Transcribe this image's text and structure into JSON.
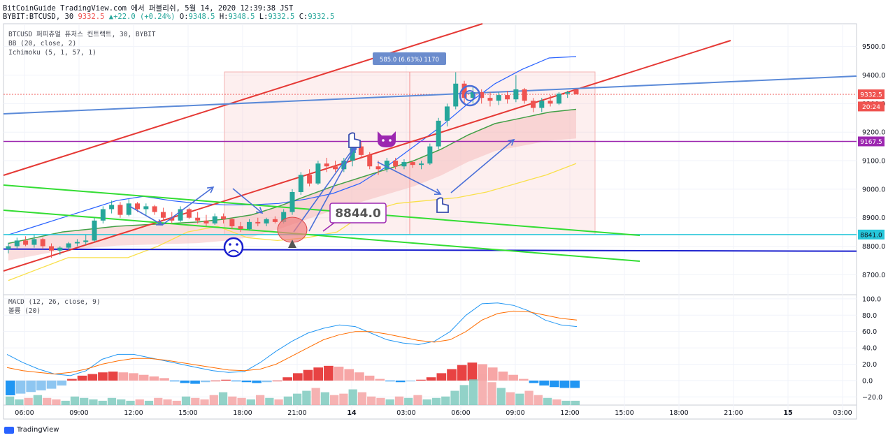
{
  "header": {
    "source_line": "BitCoinGuide TradingView.com 에서 퍼블리쉬, 5월 14, 2020 12:39:38 JST",
    "ticker": "BYBIT:BTCUSD, 30",
    "last": "9332.5",
    "change": "+22.0 (+0.24%)",
    "ohlc": [
      {
        "k": "O:",
        "v": "9348.5"
      },
      {
        "k": "H:",
        "v": "9348.5"
      },
      {
        "k": "L:",
        "v": "9332.5"
      },
      {
        "k": "C:",
        "v": "9332.5"
      }
    ]
  },
  "legend": {
    "symbol": "BTCUSD 퍼피츄얼 퓨처스 컨트랙트, 30, BYBIT",
    "bb": "BB (20, close, 2)",
    "ichimoku": "Ichimoku (5, 1, 57, 1)",
    "macd": "MACD (12, 26, close, 9)",
    "volume": "볼륨 (20)"
  },
  "footer": {
    "brand": "TradingView"
  },
  "chart_data": [
    {
      "type": "candlestick",
      "title": "BTCUSD 퍼피츄얼 퓨처스 컨트랙트, 30, BYBIT",
      "x_ticks": [
        "06:00",
        "09:00",
        "12:00",
        "15:00",
        "18:00",
        "21:00",
        "14",
        "03:00",
        "06:00",
        "09:00",
        "12:00",
        "15:00",
        "18:00",
        "21:00",
        "15",
        "03:00"
      ],
      "y_ticks": [
        8700,
        8800,
        8900,
        9000,
        9100,
        9200,
        9300,
        9400,
        9500
      ],
      "ylim": [
        8630,
        9580
      ],
      "price_labels": [
        {
          "value": 9332.5,
          "label": "9332.5",
          "color": "#ef5350"
        },
        {
          "value": 9290,
          "label": "20:24",
          "color": "#ef5350"
        },
        {
          "value": 9167.5,
          "label": "9167.5",
          "color": "#9c27b0"
        },
        {
          "value": 8841.0,
          "label": "8841.0",
          "color": "#26c6da"
        }
      ],
      "levels": [
        {
          "name": "9167.5",
          "value": 9167.5,
          "color": "#9c27b0"
        },
        {
          "name": "8841.0",
          "value": 8841.0,
          "color": "#26c6da"
        },
        {
          "name": "8790",
          "value": 8790,
          "color": "#1a1fce"
        }
      ],
      "annotations": [
        {
          "text": "585.0 (6.63%) 1170",
          "kind": "measure"
        },
        {
          "text": "8844.0",
          "kind": "callout"
        }
      ],
      "candles": [
        {
          "o": 8790,
          "h": 8812,
          "l": 8775,
          "c": 8800
        },
        {
          "o": 8800,
          "h": 8830,
          "l": 8790,
          "c": 8820
        },
        {
          "o": 8820,
          "h": 8835,
          "l": 8800,
          "c": 8805
        },
        {
          "o": 8805,
          "h": 8840,
          "l": 8795,
          "c": 8825
        },
        {
          "o": 8825,
          "h": 8830,
          "l": 8790,
          "c": 8800
        },
        {
          "o": 8800,
          "h": 8810,
          "l": 8760,
          "c": 8785
        },
        {
          "o": 8785,
          "h": 8800,
          "l": 8770,
          "c": 8795
        },
        {
          "o": 8795,
          "h": 8815,
          "l": 8785,
          "c": 8810
        },
        {
          "o": 8810,
          "h": 8825,
          "l": 8800,
          "c": 8815
        },
        {
          "o": 8815,
          "h": 8840,
          "l": 8805,
          "c": 8820
        },
        {
          "o": 8820,
          "h": 8900,
          "l": 8815,
          "c": 8890
        },
        {
          "o": 8890,
          "h": 8940,
          "l": 8880,
          "c": 8930
        },
        {
          "o": 8930,
          "h": 8960,
          "l": 8915,
          "c": 8945
        },
        {
          "o": 8945,
          "h": 8955,
          "l": 8900,
          "c": 8910
        },
        {
          "o": 8910,
          "h": 8965,
          "l": 8905,
          "c": 8950
        },
        {
          "o": 8950,
          "h": 8955,
          "l": 8920,
          "c": 8930
        },
        {
          "o": 8930,
          "h": 8950,
          "l": 8910,
          "c": 8940
        },
        {
          "o": 8940,
          "h": 8945,
          "l": 8910,
          "c": 8920
        },
        {
          "o": 8920,
          "h": 8935,
          "l": 8890,
          "c": 8900
        },
        {
          "o": 8900,
          "h": 8920,
          "l": 8880,
          "c": 8890
        },
        {
          "o": 8890,
          "h": 8940,
          "l": 8885,
          "c": 8930
        },
        {
          "o": 8930,
          "h": 8935,
          "l": 8895,
          "c": 8900
        },
        {
          "o": 8900,
          "h": 8920,
          "l": 8880,
          "c": 8890
        },
        {
          "o": 8890,
          "h": 8910,
          "l": 8870,
          "c": 8880
        },
        {
          "o": 8880,
          "h": 8915,
          "l": 8875,
          "c": 8905
        },
        {
          "o": 8905,
          "h": 8915,
          "l": 8880,
          "c": 8895
        },
        {
          "o": 8895,
          "h": 8900,
          "l": 8860,
          "c": 8870
        },
        {
          "o": 8870,
          "h": 8885,
          "l": 8850,
          "c": 8860
        },
        {
          "o": 8860,
          "h": 8895,
          "l": 8855,
          "c": 8885
        },
        {
          "o": 8885,
          "h": 8900,
          "l": 8870,
          "c": 8880
        },
        {
          "o": 8880,
          "h": 8900,
          "l": 8870,
          "c": 8895
        },
        {
          "o": 8895,
          "h": 8905,
          "l": 8880,
          "c": 8885
        },
        {
          "o": 8885,
          "h": 8930,
          "l": 8880,
          "c": 8920
        },
        {
          "o": 8920,
          "h": 9000,
          "l": 8910,
          "c": 8990
        },
        {
          "o": 8990,
          "h": 9060,
          "l": 8980,
          "c": 9050
        },
        {
          "o": 9050,
          "h": 9070,
          "l": 9010,
          "c": 9020
        },
        {
          "o": 9020,
          "h": 9100,
          "l": 9015,
          "c": 9090
        },
        {
          "o": 9090,
          "h": 9110,
          "l": 9060,
          "c": 9080
        },
        {
          "o": 9080,
          "h": 9100,
          "l": 9060,
          "c": 9070
        },
        {
          "o": 9070,
          "h": 9110,
          "l": 9060,
          "c": 9100
        },
        {
          "o": 9100,
          "h": 9160,
          "l": 9080,
          "c": 9150
        },
        {
          "o": 9150,
          "h": 9165,
          "l": 9110,
          "c": 9120
        },
        {
          "o": 9120,
          "h": 9130,
          "l": 9070,
          "c": 9080
        },
        {
          "o": 9080,
          "h": 9100,
          "l": 9050,
          "c": 9070
        },
        {
          "o": 9070,
          "h": 9110,
          "l": 9060,
          "c": 9100
        },
        {
          "o": 9100,
          "h": 9110,
          "l": 9070,
          "c": 9080
        },
        {
          "o": 9080,
          "h": 9105,
          "l": 9070,
          "c": 9095
        },
        {
          "o": 9095,
          "h": 9100,
          "l": 9075,
          "c": 9085
        },
        {
          "o": 9085,
          "h": 9100,
          "l": 9070,
          "c": 9090
        },
        {
          "o": 9090,
          "h": 9160,
          "l": 9085,
          "c": 9150
        },
        {
          "o": 9150,
          "h": 9250,
          "l": 9140,
          "c": 9240
        },
        {
          "o": 9240,
          "h": 9300,
          "l": 9220,
          "c": 9290
        },
        {
          "o": 9290,
          "h": 9410,
          "l": 9280,
          "c": 9370
        },
        {
          "o": 9370,
          "h": 9380,
          "l": 9300,
          "c": 9320
        },
        {
          "o": 9320,
          "h": 9360,
          "l": 9300,
          "c": 9340
        },
        {
          "o": 9340,
          "h": 9350,
          "l": 9300,
          "c": 9320
        },
        {
          "o": 9320,
          "h": 9340,
          "l": 9290,
          "c": 9310
        },
        {
          "o": 9310,
          "h": 9340,
          "l": 9295,
          "c": 9330
        },
        {
          "o": 9330,
          "h": 9345,
          "l": 9300,
          "c": 9315
        },
        {
          "o": 9315,
          "h": 9400,
          "l": 9305,
          "c": 9350
        },
        {
          "o": 9350,
          "h": 9355,
          "l": 9300,
          "c": 9310
        },
        {
          "o": 9310,
          "h": 9320,
          "l": 9270,
          "c": 9285
        },
        {
          "o": 9285,
          "h": 9320,
          "l": 9270,
          "c": 9310
        },
        {
          "o": 9310,
          "h": 9330,
          "l": 9290,
          "c": 9300
        },
        {
          "o": 9300,
          "h": 9340,
          "l": 9295,
          "c": 9335
        },
        {
          "o": 9335,
          "h": 9345,
          "l": 9320,
          "c": 9340
        },
        {
          "o": 9348.5,
          "h": 9348.5,
          "l": 9332.5,
          "c": 9332.5
        }
      ],
      "bb_upper": [
        8840,
        8870,
        8900,
        8930,
        8960,
        8975,
        8960,
        8950,
        8945,
        8945,
        8950,
        8965,
        8985,
        9020,
        9080,
        9150,
        9220,
        9300,
        9370,
        9420,
        9460,
        9465
      ],
      "bb_basis": [
        8810,
        8830,
        8850,
        8860,
        8870,
        8875,
        8880,
        8885,
        8895,
        8910,
        8940,
        8975,
        9010,
        9040,
        9070,
        9100,
        9140,
        9190,
        9230,
        9250,
        9270,
        9280
      ],
      "ichimoku_lagging": [
        8680,
        8720,
        8760,
        8760,
        8760,
        8800,
        8850,
        8870,
        8830,
        8820,
        8830,
        8850,
        8920,
        8950,
        8960,
        8970,
        8990,
        9020,
        9050,
        9090
      ]
    },
    {
      "type": "bar",
      "title": "MACD (12, 26, close, 9)",
      "y_ticks": [
        -20,
        0,
        20,
        40,
        60,
        80,
        100
      ],
      "ylim": [
        -30,
        105
      ],
      "histogram": [
        -18,
        -16,
        -14,
        -12,
        -10,
        -6,
        2,
        6,
        8,
        10,
        11,
        10,
        9,
        7,
        5,
        3,
        -1,
        -3,
        -4,
        -2,
        0,
        1,
        -1,
        -2,
        -3,
        -2,
        0,
        4,
        9,
        13,
        16,
        18,
        17,
        14,
        10,
        6,
        2,
        -1,
        -2,
        -1,
        1,
        4,
        9,
        14,
        19,
        22,
        20,
        16,
        11,
        7,
        2,
        -3,
        -6,
        -8,
        -9,
        -9
      ],
      "macd_line": [
        32,
        22,
        14,
        8,
        6,
        12,
        26,
        32,
        32,
        28,
        24,
        20,
        16,
        12,
        10,
        11,
        22,
        36,
        48,
        58,
        64,
        68,
        66,
        58,
        50,
        46,
        44,
        48,
        60,
        80,
        94,
        95,
        92,
        85,
        74,
        68,
        66
      ],
      "signal_line": [
        16,
        12,
        10,
        8,
        10,
        14,
        20,
        24,
        27,
        27,
        25,
        22,
        19,
        16,
        13,
        12,
        14,
        20,
        30,
        40,
        50,
        56,
        60,
        60,
        57,
        53,
        49,
        47,
        50,
        60,
        74,
        82,
        85,
        84,
        80,
        76,
        74
      ]
    },
    {
      "type": "bar",
      "title": "볼륨 (20)",
      "values": [
        6,
        4,
        5,
        7,
        5,
        4,
        3,
        6,
        5,
        4,
        3,
        5,
        4,
        3,
        4,
        3,
        5,
        4,
        3,
        6,
        5,
        4,
        7,
        9,
        6,
        5,
        4,
        7,
        5,
        4,
        6,
        8,
        10,
        12,
        9,
        7,
        8,
        11,
        9,
        6,
        5,
        4,
        6,
        5,
        7,
        4,
        5,
        6,
        10,
        14,
        18,
        22,
        16,
        12,
        9,
        8,
        10,
        7,
        5,
        4,
        3,
        3
      ]
    }
  ]
}
